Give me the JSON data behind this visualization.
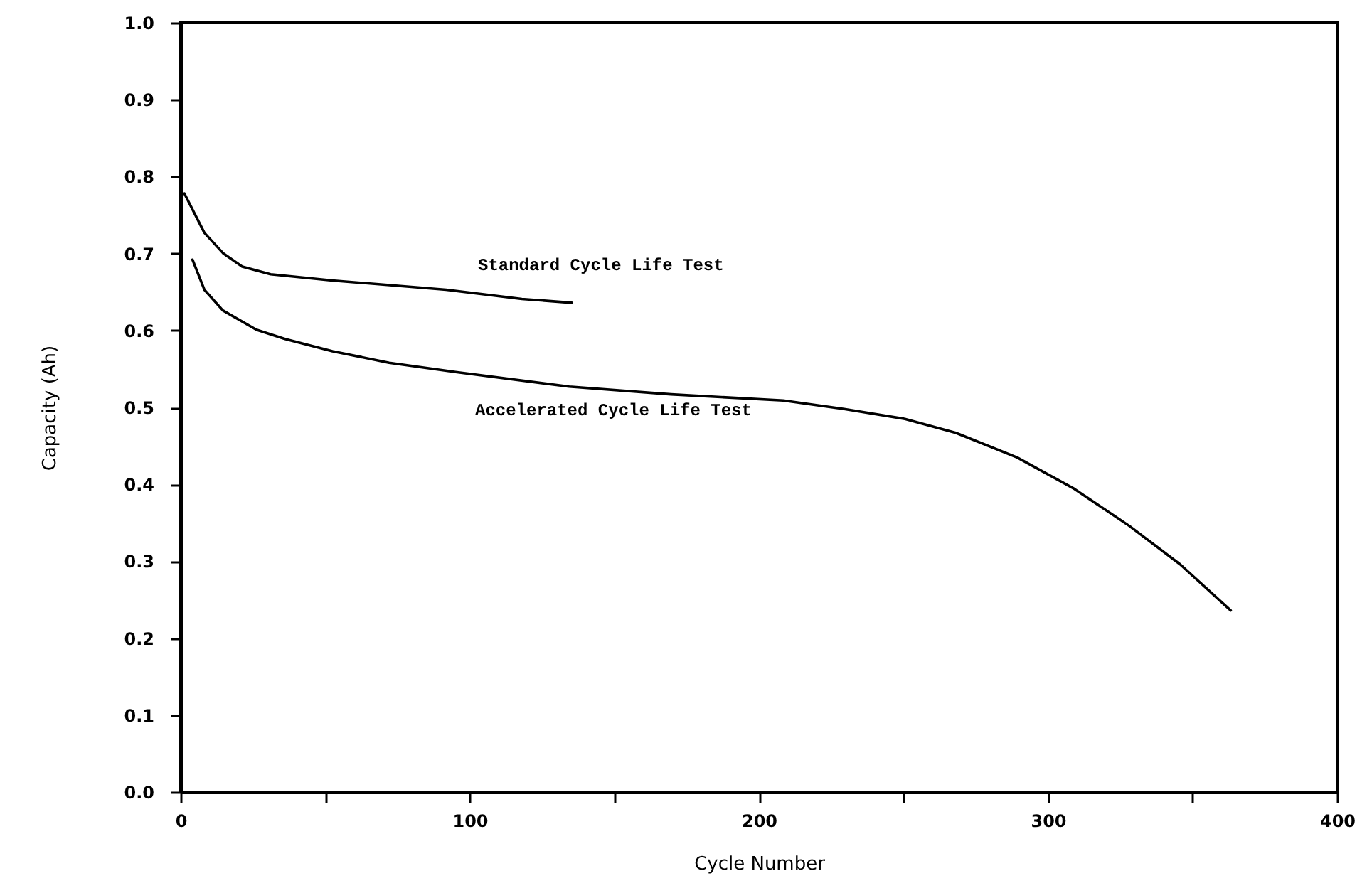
{
  "chart_data": {
    "type": "line",
    "xlabel": "Cycle Number",
    "ylabel": "Capacity (Ah)",
    "series": [
      {
        "name": "Standard Cycle Life Test",
        "color": "#000000",
        "x": [
          1.3,
          8.2,
          14.8,
          21.3,
          31.1,
          52.4,
          91.8,
          118,
          135.3
        ],
        "values": [
          0.778,
          0.727,
          0.7,
          0.683,
          0.673,
          0.665,
          0.653,
          0.641,
          0.636
        ]
      },
      {
        "name": "Accelerated Cycle Life Test",
        "color": "#000000",
        "x": [
          4.1,
          8.2,
          14.6,
          26.2,
          36.1,
          52.5,
          72.1,
          95.1,
          134.4,
          169.6,
          208.4,
          229.5,
          250.5,
          268.1,
          289.3,
          308.7,
          328.1,
          345.7,
          363.2
        ],
        "values": [
          0.692,
          0.653,
          0.626,
          0.601,
          0.589,
          0.573,
          0.558,
          0.546,
          0.527,
          0.517,
          0.509,
          0.498,
          0.485,
          0.467,
          0.435,
          0.395,
          0.346,
          0.296,
          0.236
        ]
      }
    ],
    "legend": false,
    "xlim": [
      0,
      400
    ],
    "xticks": [
      0,
      {
        "value": 50,
        "label": null
      },
      100,
      {
        "value": 150,
        "label": null
      },
      200,
      {
        "value": 250,
        "label": null
      },
      300,
      {
        "value": 350,
        "label": null
      },
      400
    ],
    "ylim": [
      0,
      1
    ],
    "yticks": [
      {
        "value": 0,
        "label": "0.0"
      },
      {
        "value": 0.1,
        "label": "0.1"
      },
      {
        "value": 0.2,
        "label": "0.2"
      },
      {
        "value": 0.3,
        "label": "0.3"
      },
      {
        "value": 0.4,
        "label": "0.4"
      },
      {
        "value": 0.5,
        "label": "0.5"
      },
      {
        "value": 0.6,
        "label": "0.6"
      },
      {
        "value": 0.7,
        "label": "0.7"
      },
      {
        "value": 0.8,
        "label": "0.8"
      },
      {
        "value": 0.9,
        "label": "0.9"
      },
      {
        "value": 1,
        "label": "1.0"
      }
    ],
    "grid": false,
    "marker": "none",
    "line_style": "solid"
  }
}
